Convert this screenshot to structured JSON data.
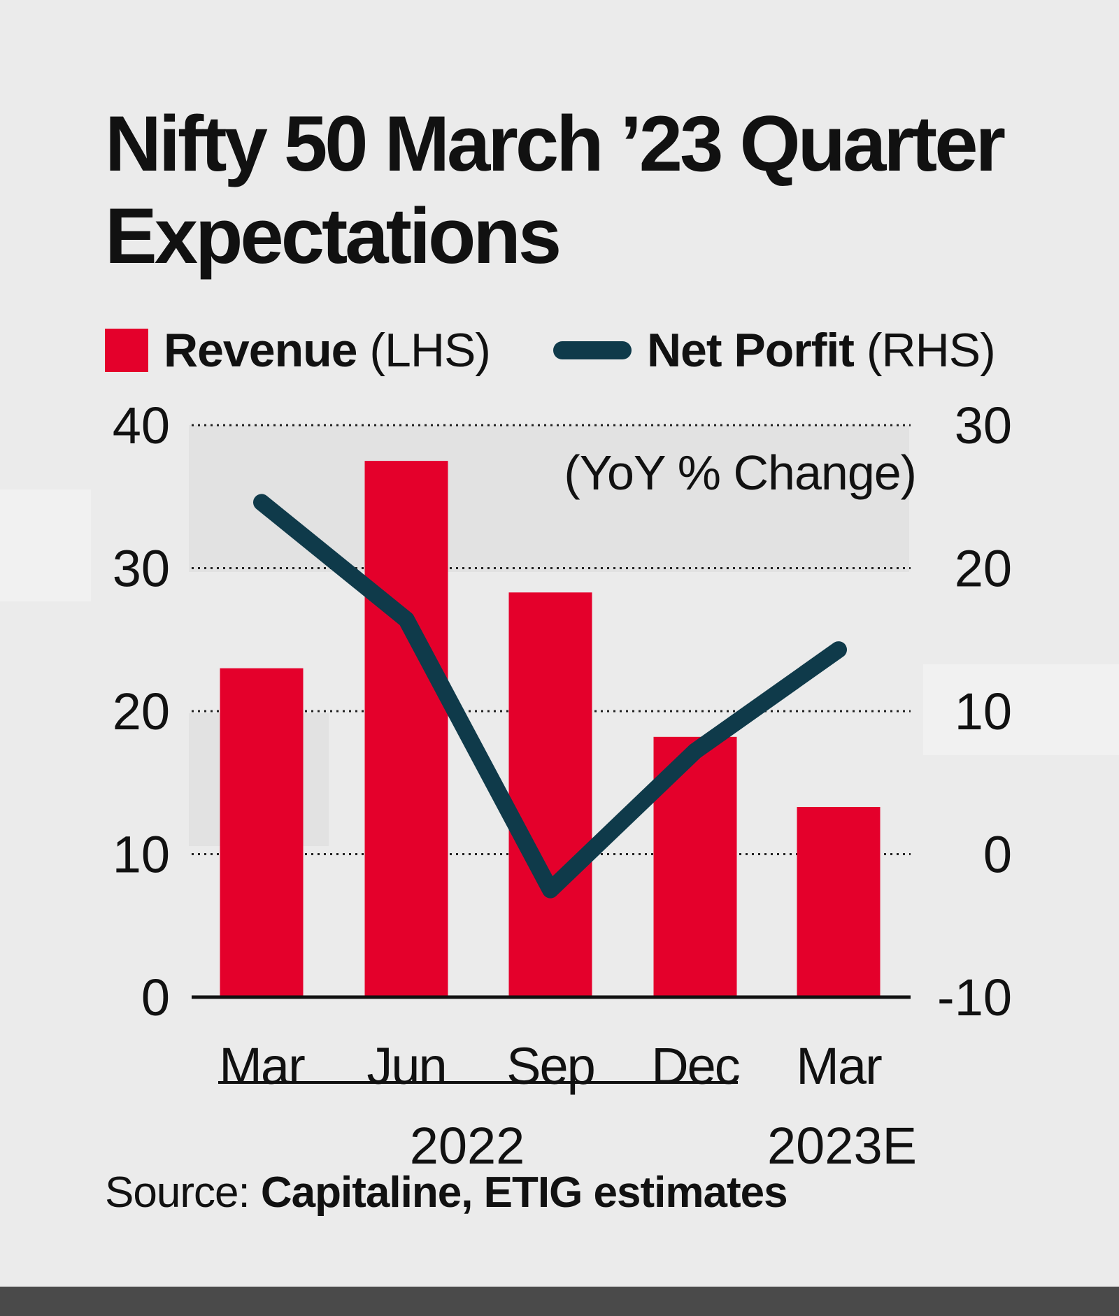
{
  "chart_data": {
    "type": "bar+line",
    "title": "Nifty 50 March ’23 Quarter Expectations",
    "categories": [
      "Mar",
      "Jun",
      "Sep",
      "Dec",
      "Mar"
    ],
    "year_groups": [
      {
        "label": "2022",
        "span": [
          "Mar",
          "Jun",
          "Sep",
          "Dec"
        ]
      },
      {
        "label": "2023E",
        "span": [
          "Mar"
        ]
      }
    ],
    "series": [
      {
        "name": "Revenue",
        "axis_note": "(LHS)",
        "type": "bar",
        "axis": "left",
        "color": "#e4002b",
        "values": [
          23,
          37.5,
          28.3,
          18.2,
          13.3
        ]
      },
      {
        "name": "Net Porfit",
        "axis_note": "(RHS)",
        "type": "line",
        "axis": "right",
        "color": "#0f3a4a",
        "values": [
          24.6,
          16.4,
          -2.5,
          7.2,
          14.3
        ]
      }
    ],
    "left_axis": {
      "ylim": [
        0,
        40
      ],
      "ticks": [
        "0",
        "10",
        "20",
        "30",
        "40"
      ]
    },
    "right_axis": {
      "ylim": [
        -10,
        30
      ],
      "ticks": [
        "-10",
        "0",
        "10",
        "20",
        "30"
      ],
      "label": "(YoY % Change)"
    },
    "grid": "dotted horizontal",
    "legend": "top-left"
  },
  "source": {
    "prefix": "Source:",
    "text": "Capitaline, ETIG estimates"
  }
}
